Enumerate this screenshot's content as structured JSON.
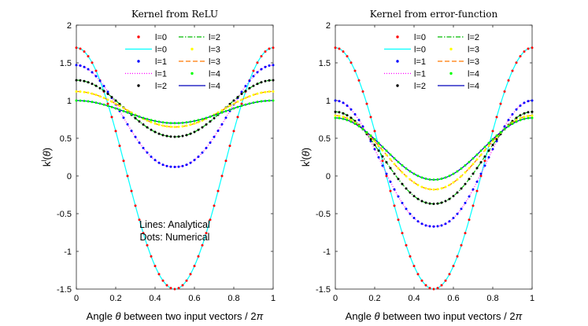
{
  "chart_data": [
    {
      "type": "line",
      "title": "Kernel from ReLU",
      "xlabel": "Angle θ between two input vectors / 2π",
      "ylabel": "k^l(θ)",
      "xlim": [
        0,
        1
      ],
      "ylim": [
        -1.5,
        2
      ],
      "xticks": [
        "0",
        "0.2",
        "0.4",
        "0.6",
        "0.8",
        "1"
      ],
      "yticks": [
        "-1.5",
        "-1",
        "-0.5",
        "0",
        "0.5",
        "1",
        "1.5",
        "2"
      ],
      "annotation": [
        "Lines: Analytical",
        "Dots: Numerical"
      ],
      "legend": {
        "position": "top",
        "entries": [
          {
            "label": "l=0",
            "style": "dots",
            "color": "#ff0000"
          },
          {
            "label": "l=2",
            "style": "dashdot",
            "color": "#00bb00"
          },
          {
            "label": "l=0",
            "style": "solid",
            "color": "#00ffff"
          },
          {
            "label": "l=3",
            "style": "dots",
            "color": "#ffff00"
          },
          {
            "label": "l=1",
            "style": "dots",
            "color": "#0000ff"
          },
          {
            "label": "l=3",
            "style": "dashed",
            "color": "#ff7700"
          },
          {
            "label": "l=1",
            "style": "dotted",
            "color": "#ff00ff"
          },
          {
            "label": "l=4",
            "style": "dots",
            "color": "#00ff00"
          },
          {
            "label": "l=2",
            "style": "dots",
            "color": "#000000"
          },
          {
            "label": "l=4",
            "style": "solid",
            "color": "#0000bb"
          }
        ]
      },
      "series": [
        {
          "name": "l=0",
          "max": 1.7,
          "min": -1.5
        },
        {
          "name": "l=1",
          "max": 1.47,
          "min": 0.12
        },
        {
          "name": "l=2",
          "max": 1.27,
          "min": 0.52
        },
        {
          "name": "l=3",
          "max": 1.12,
          "min": 0.65
        },
        {
          "name": "l=4",
          "max": 1.0,
          "min": 0.7
        }
      ]
    },
    {
      "type": "line",
      "title": "Kernel from error-function",
      "xlabel": "Angle θ between two input vectors / 2π",
      "ylabel": "k^l(θ)",
      "xlim": [
        0,
        1
      ],
      "ylim": [
        -1.5,
        2
      ],
      "xticks": [
        "0",
        "0.2",
        "0.4",
        "0.6",
        "0.8",
        "1"
      ],
      "yticks": [
        "-1.5",
        "-1",
        "-0.5",
        "0",
        "0.5",
        "1",
        "1.5",
        "2"
      ],
      "legend": {
        "position": "top",
        "entries": [
          {
            "label": "l=0",
            "style": "dots",
            "color": "#ff0000"
          },
          {
            "label": "l=2",
            "style": "dashdot",
            "color": "#00bb00"
          },
          {
            "label": "l=0",
            "style": "solid",
            "color": "#00ffff"
          },
          {
            "label": "l=3",
            "style": "dots",
            "color": "#ffff00"
          },
          {
            "label": "l=1",
            "style": "dots",
            "color": "#0000ff"
          },
          {
            "label": "l=3",
            "style": "dashed",
            "color": "#ff7700"
          },
          {
            "label": "l=1",
            "style": "dotted",
            "color": "#ff00ff"
          },
          {
            "label": "l=4",
            "style": "dots",
            "color": "#00ff00"
          },
          {
            "label": "l=2",
            "style": "dots",
            "color": "#000000"
          },
          {
            "label": "l=4",
            "style": "solid",
            "color": "#0000bb"
          }
        ]
      },
      "series": [
        {
          "name": "l=0",
          "max": 1.7,
          "min": -1.5
        },
        {
          "name": "l=1",
          "max": 1.0,
          "min": -0.67
        },
        {
          "name": "l=2",
          "max": 0.85,
          "min": -0.37
        },
        {
          "name": "l=3",
          "max": 0.8,
          "min": -0.18
        },
        {
          "name": "l=4",
          "max": 0.77,
          "min": -0.05
        }
      ]
    }
  ],
  "colors": {
    "l0_dot": "#ff0000",
    "l0_line": "#00ffff",
    "l1_dot": "#0000ff",
    "l1_line": "#ff00ff",
    "l2_dot": "#000000",
    "l2_line": "#00bb00",
    "l3_dot": "#ffff00",
    "l3_line": "#ff7700",
    "l4_dot": "#00ff00",
    "l4_line": "#0000bb"
  }
}
